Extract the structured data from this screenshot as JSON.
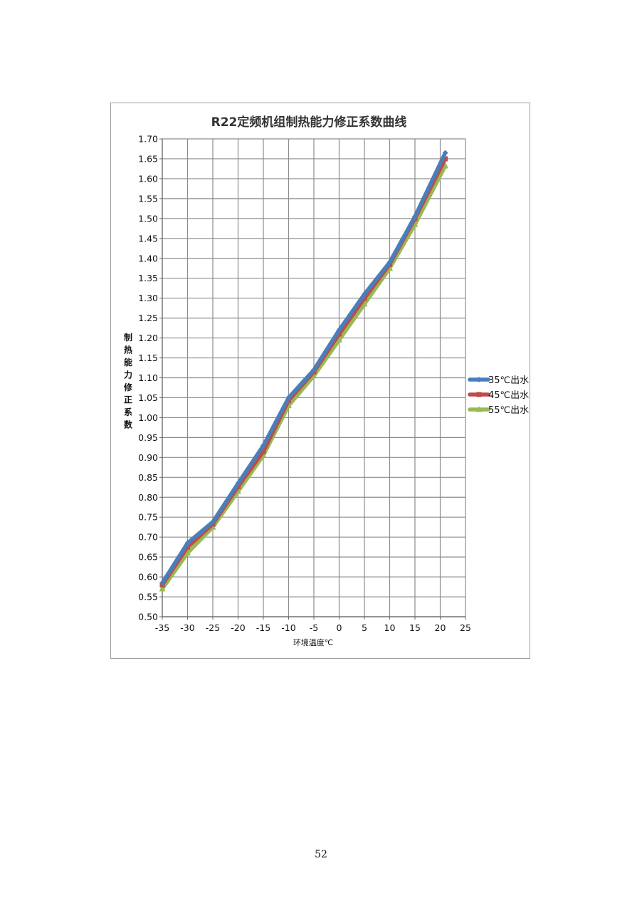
{
  "page": {
    "number": "52"
  },
  "chart_data": {
    "type": "line",
    "title": "R22定频机组制热能力修正系数曲线",
    "xlabel": "环境温度℃",
    "ylabel": "制热能力修正系数",
    "xlim": [
      -35,
      25
    ],
    "ylim": [
      0.5,
      1.7
    ],
    "xticks": [
      -35,
      -30,
      -25,
      -20,
      -15,
      -10,
      -5,
      0,
      5,
      10,
      15,
      20,
      25
    ],
    "xtick_labels": [
      "-35",
      "-30",
      "-25",
      "-20",
      "-15",
      "-10",
      "-5",
      "0",
      "5",
      "10",
      "15",
      "20",
      "25"
    ],
    "yticks": [
      0.5,
      0.55,
      0.6,
      0.65,
      0.7,
      0.75,
      0.8,
      0.85,
      0.9,
      0.95,
      1.0,
      1.05,
      1.1,
      1.15,
      1.2,
      1.25,
      1.3,
      1.35,
      1.4,
      1.45,
      1.5,
      1.55,
      1.6,
      1.65,
      1.7
    ],
    "ytick_labels": [
      "0.50",
      "0.55",
      "0.60",
      "0.65",
      "0.70",
      "0.75",
      "0.80",
      "0.85",
      "0.90",
      "0.95",
      "1.00",
      "1.05",
      "1.10",
      "1.15",
      "1.20",
      "1.25",
      "1.30",
      "1.35",
      "1.40",
      "1.45",
      "1.50",
      "1.55",
      "1.60",
      "1.65",
      "1.70"
    ],
    "grid": true,
    "legend_position": "right",
    "x": [
      -35,
      -30,
      -25,
      -20,
      -15,
      -10,
      -5,
      0,
      5,
      10,
      15,
      21
    ],
    "series": [
      {
        "name": "35℃出水",
        "color": "#4a7ebb",
        "marker": "diamond",
        "values": [
          0.585,
          0.685,
          0.738,
          0.835,
          0.93,
          1.05,
          1.12,
          1.22,
          1.31,
          1.39,
          1.505,
          1.665
        ]
      },
      {
        "name": "45℃出水",
        "color": "#be4b48",
        "marker": "square",
        "values": [
          0.58,
          0.675,
          0.733,
          0.827,
          0.915,
          1.043,
          1.115,
          1.21,
          1.3,
          1.385,
          1.5,
          1.65
        ]
      },
      {
        "name": "55℃出水",
        "color": "#98b954",
        "marker": "triangle",
        "values": [
          0.57,
          0.66,
          0.725,
          0.815,
          0.905,
          1.03,
          1.105,
          1.195,
          1.285,
          1.375,
          1.485,
          1.632
        ]
      }
    ]
  }
}
